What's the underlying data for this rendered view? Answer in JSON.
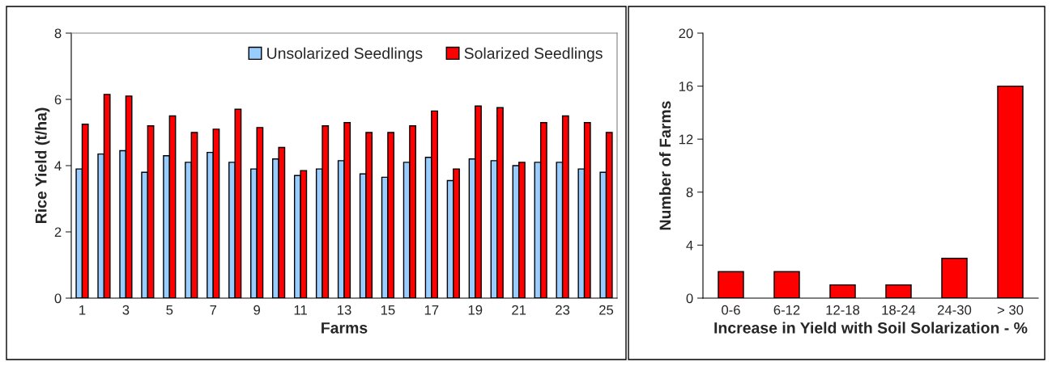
{
  "chart_data": [
    {
      "type": "bar",
      "xlabel": "Farms",
      "ylabel": "Rice Yield (t/ha)",
      "categories": [
        "1",
        null,
        "3",
        null,
        "5",
        null,
        "7",
        null,
        "9",
        null,
        "11",
        null,
        "13",
        null,
        "15",
        null,
        "17",
        null,
        "19",
        null,
        "21",
        null,
        "23",
        null,
        "25"
      ],
      "series": [
        {
          "name": "Unsolarized Seedlings",
          "color": "#99ccff",
          "values": [
            3.9,
            4.35,
            4.45,
            3.8,
            4.3,
            4.1,
            4.4,
            4.1,
            3.9,
            4.2,
            3.7,
            3.9,
            4.15,
            3.75,
            3.65,
            4.1,
            4.25,
            3.55,
            4.2,
            4.15,
            4.0,
            4.1,
            4.1,
            3.9,
            3.8
          ]
        },
        {
          "name": "Solarized Seedlings",
          "color": "#ff0000",
          "values": [
            5.25,
            6.15,
            6.1,
            5.2,
            5.5,
            5.0,
            5.1,
            5.7,
            5.15,
            4.55,
            3.85,
            5.2,
            5.3,
            5.0,
            5.0,
            5.2,
            5.65,
            3.9,
            5.8,
            5.75,
            4.1,
            5.3,
            5.5,
            5.3,
            5.0
          ]
        }
      ],
      "ylim": [
        0,
        8
      ],
      "yticks": [
        0,
        2,
        4,
        6,
        8
      ],
      "grid": false,
      "legend": "top right"
    },
    {
      "type": "bar",
      "xlabel": "Increase in Yield with Soil Solarization - %",
      "ylabel": "Number of Farms",
      "categories": [
        "0-6",
        "6-12",
        "12-18",
        "18-24",
        "24-30",
        "> 30"
      ],
      "values": [
        2,
        2,
        1,
        1,
        3,
        16
      ],
      "color": "#ff0000",
      "ylim": [
        0,
        20
      ],
      "yticks": [
        0,
        4,
        8,
        12,
        16,
        20
      ],
      "grid": false,
      "legend": false
    }
  ]
}
